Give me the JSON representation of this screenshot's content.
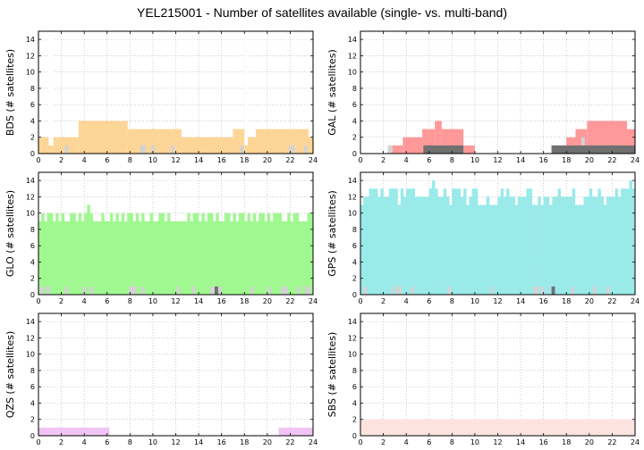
{
  "title": "YEL215001 - Number of satellites available (single- vs. multi-band)",
  "chart_data": [
    {
      "type": "bar",
      "system": "BDS",
      "ylabel": "BDS (# satellites)",
      "xlim": [
        0,
        24
      ],
      "ylim": [
        0,
        15
      ],
      "xticks": [
        0,
        2,
        4,
        6,
        8,
        10,
        12,
        14,
        16,
        18,
        20,
        22,
        24
      ],
      "yticks": [
        0,
        2,
        4,
        6,
        8,
        10,
        12,
        14
      ],
      "grid": true,
      "colors": {
        "single": "#fdd596",
        "multi": "#d3d3d3",
        "multi2": "#707070"
      },
      "single_band": [
        {
          "from": 0.0,
          "to": 1.3,
          "value": 2
        },
        {
          "from": 1.3,
          "to": 3.5,
          "value": 2
        },
        {
          "from": 3.5,
          "to": 7.8,
          "value": 4
        },
        {
          "from": 7.8,
          "to": 10.5,
          "value": 3
        },
        {
          "from": 10.5,
          "to": 12.5,
          "value": 3
        },
        {
          "from": 12.5,
          "to": 15.0,
          "value": 2
        },
        {
          "from": 15.0,
          "to": 17.0,
          "value": 2
        },
        {
          "from": 17.0,
          "to": 18.3,
          "value": 3
        },
        {
          "from": 18.3,
          "to": 19.0,
          "value": 2
        },
        {
          "from": 19.0,
          "to": 24.0,
          "value": 3
        }
      ],
      "single_band_dips": [
        {
          "from": 0.9,
          "to": 1.3,
          "value": 1
        },
        {
          "from": 18.0,
          "to": 18.3,
          "value": 1
        },
        {
          "from": 23.6,
          "to": 24.0,
          "value": 2
        }
      ],
      "multi_band": [
        {
          "from": 2.3,
          "to": 2.6,
          "value": 1
        },
        {
          "from": 8.9,
          "to": 9.4,
          "value": 1
        },
        {
          "from": 9.9,
          "to": 10.2,
          "value": 1
        },
        {
          "from": 11.6,
          "to": 11.9,
          "value": 1
        },
        {
          "from": 17.6,
          "to": 17.9,
          "value": 1
        },
        {
          "from": 21.9,
          "to": 22.4,
          "value": 1
        },
        {
          "from": 23.2,
          "to": 23.5,
          "value": 1
        }
      ],
      "multi_band_dark": []
    },
    {
      "type": "bar",
      "system": "GAL",
      "ylabel": "GAL (# satellites)",
      "xlim": [
        0,
        24
      ],
      "ylim": [
        0,
        15
      ],
      "xticks": [
        0,
        2,
        4,
        6,
        8,
        10,
        12,
        14,
        16,
        18,
        20,
        22,
        24
      ],
      "yticks": [
        0,
        2,
        4,
        6,
        8,
        10,
        12,
        14
      ],
      "grid": true,
      "colors": {
        "single": "#ff9999",
        "multi": "#d3d3d3",
        "multi2": "#707070"
      },
      "single_band": [
        {
          "from": 2.4,
          "to": 2.8,
          "value": 1
        },
        {
          "from": 2.8,
          "to": 3.7,
          "value": 1
        },
        {
          "from": 3.7,
          "to": 5.4,
          "value": 2
        },
        {
          "from": 5.4,
          "to": 6.5,
          "value": 3
        },
        {
          "from": 6.5,
          "to": 7.1,
          "value": 4
        },
        {
          "from": 7.1,
          "to": 9.0,
          "value": 3
        },
        {
          "from": 9.0,
          "to": 10.0,
          "value": 1
        },
        {
          "from": 16.7,
          "to": 18.0,
          "value": 1
        },
        {
          "from": 18.0,
          "to": 18.8,
          "value": 2
        },
        {
          "from": 18.8,
          "to": 19.8,
          "value": 3
        },
        {
          "from": 19.8,
          "to": 23.3,
          "value": 4
        },
        {
          "from": 23.3,
          "to": 24.0,
          "value": 3
        }
      ],
      "single_band_dips": [],
      "multi_band": [
        {
          "from": 2.4,
          "to": 2.8,
          "value": 1
        },
        {
          "from": 19.3,
          "to": 19.6,
          "value": 2
        }
      ],
      "multi_band_dark": [
        {
          "from": 5.5,
          "to": 9.0,
          "value": 1
        },
        {
          "from": 16.7,
          "to": 24.0,
          "value": 1
        }
      ]
    },
    {
      "type": "bar",
      "system": "GLO",
      "ylabel": "GLO (# satellites)",
      "xlim": [
        0,
        24
      ],
      "ylim": [
        0,
        15
      ],
      "xticks": [
        0,
        2,
        4,
        6,
        8,
        10,
        12,
        14,
        16,
        18,
        20,
        22,
        24
      ],
      "yticks": [
        0,
        2,
        4,
        6,
        8,
        10,
        12,
        14
      ],
      "grid": true,
      "colors": {
        "single": "#a0f890",
        "multi": "#d3d3d3",
        "multi2": "#707070"
      },
      "single_band_series": [
        9,
        10,
        9,
        10,
        10,
        9,
        10,
        9,
        10,
        9,
        9,
        10,
        10,
        9,
        10,
        9,
        10,
        11,
        10,
        9,
        9,
        9,
        10,
        9,
        9,
        10,
        9,
        10,
        9,
        10,
        9,
        10,
        10,
        9,
        10,
        9,
        10,
        9,
        9,
        10,
        9,
        9,
        10,
        10,
        9,
        10,
        9,
        9,
        9,
        9,
        9,
        9,
        10,
        9,
        10,
        10,
        9,
        10,
        9,
        10,
        10,
        9,
        10,
        9,
        9,
        10,
        10,
        9,
        10,
        9,
        10,
        10,
        9,
        10,
        9,
        10,
        9,
        10,
        10,
        9,
        10,
        9,
        10,
        10,
        10,
        9,
        9,
        10,
        9,
        10,
        10,
        9,
        9,
        9,
        10,
        10
      ],
      "single_band": [],
      "single_band_dips": [],
      "multi_band": [
        {
          "from": 0.1,
          "to": 0.5,
          "value": 1
        },
        {
          "from": 0.7,
          "to": 1.0,
          "value": 1
        },
        {
          "from": 2.3,
          "to": 2.6,
          "value": 1
        },
        {
          "from": 3.9,
          "to": 4.2,
          "value": 1
        },
        {
          "from": 4.5,
          "to": 4.8,
          "value": 1
        },
        {
          "from": 7.9,
          "to": 8.6,
          "value": 1
        },
        {
          "from": 9.0,
          "to": 9.3,
          "value": 1
        },
        {
          "from": 12.1,
          "to": 12.4,
          "value": 1
        },
        {
          "from": 13.4,
          "to": 13.7,
          "value": 1
        },
        {
          "from": 15.0,
          "to": 15.4,
          "value": 1
        },
        {
          "from": 15.7,
          "to": 16.0,
          "value": 1
        },
        {
          "from": 18.5,
          "to": 18.8,
          "value": 1
        },
        {
          "from": 20.0,
          "to": 20.3,
          "value": 1
        },
        {
          "from": 21.2,
          "to": 21.8,
          "value": 1
        },
        {
          "from": 22.6,
          "to": 22.9,
          "value": 1
        },
        {
          "from": 23.3,
          "to": 23.8,
          "value": 1
        }
      ],
      "multi_band_dark": [
        {
          "from": 15.4,
          "to": 15.7,
          "value": 1
        }
      ]
    },
    {
      "type": "bar",
      "system": "GPS",
      "ylabel": "GPS (# satellites)",
      "xlim": [
        0,
        24
      ],
      "ylim": [
        0,
        15
      ],
      "xticks": [
        0,
        2,
        4,
        6,
        8,
        10,
        12,
        14,
        16,
        18,
        20,
        22,
        24
      ],
      "yticks": [
        0,
        2,
        4,
        6,
        8,
        10,
        12,
        14
      ],
      "grid": true,
      "colors": {
        "single": "#9aeaea",
        "multi": "#d3d3d3",
        "multi2": "#707070"
      },
      "single_band_series": [
        11,
        12,
        12,
        13,
        13,
        13,
        12,
        13,
        12,
        12,
        13,
        13,
        13,
        11,
        13,
        12,
        13,
        13,
        13,
        12,
        12,
        12,
        12,
        12,
        13,
        14,
        13,
        12,
        12,
        13,
        12,
        11,
        13,
        13,
        13,
        12,
        13,
        11,
        12,
        13,
        13,
        11,
        11,
        11,
        12,
        11,
        11,
        11,
        12,
        13,
        12,
        13,
        12,
        12,
        11,
        12,
        12,
        12,
        13,
        13,
        11,
        11,
        12,
        11,
        12,
        12,
        11,
        12,
        12,
        13,
        12,
        12,
        12,
        12,
        13,
        11,
        11,
        11,
        12,
        12,
        13,
        12,
        12,
        13,
        12,
        11,
        12,
        12,
        12,
        13,
        12,
        13,
        13,
        13,
        14,
        13
      ],
      "single_band": [],
      "single_band_dips": [],
      "multi_band": [
        {
          "from": 0.3,
          "to": 0.6,
          "value": 1
        },
        {
          "from": 2.7,
          "to": 2.9,
          "value": 1
        },
        {
          "from": 3.1,
          "to": 3.6,
          "value": 1
        },
        {
          "from": 4.4,
          "to": 4.7,
          "value": 1
        },
        {
          "from": 7.6,
          "to": 7.9,
          "value": 1
        },
        {
          "from": 11.4,
          "to": 11.6,
          "value": 1
        },
        {
          "from": 15.1,
          "to": 15.6,
          "value": 1
        },
        {
          "from": 15.8,
          "to": 16.1,
          "value": 1
        },
        {
          "from": 18.4,
          "to": 18.7,
          "value": 1
        },
        {
          "from": 20.3,
          "to": 20.6,
          "value": 1
        },
        {
          "from": 21.5,
          "to": 21.8,
          "value": 1
        }
      ],
      "multi_band_dark": [
        {
          "from": 16.7,
          "to": 17.0,
          "value": 1
        }
      ]
    },
    {
      "type": "bar",
      "system": "QZS",
      "ylabel": "QZS (# satellites)",
      "xlim": [
        0,
        24
      ],
      "ylim": [
        0,
        15
      ],
      "xticks": [
        0,
        2,
        4,
        6,
        8,
        10,
        12,
        14,
        16,
        18,
        20,
        22,
        24
      ],
      "yticks": [
        0,
        2,
        4,
        6,
        8,
        10,
        12,
        14
      ],
      "grid": true,
      "colors": {
        "single": "#f0c4f4",
        "multi": "#d3d3d3",
        "multi2": "#707070"
      },
      "single_band": [
        {
          "from": 0.0,
          "to": 6.2,
          "value": 1
        },
        {
          "from": 21.0,
          "to": 24.0,
          "value": 1
        }
      ],
      "single_band_dips": [],
      "multi_band": [],
      "multi_band_dark": []
    },
    {
      "type": "bar",
      "system": "SBS",
      "ylabel": "SBS (# satellites)",
      "xlim": [
        0,
        24
      ],
      "ylim": [
        0,
        15
      ],
      "xticks": [
        0,
        2,
        4,
        6,
        8,
        10,
        12,
        14,
        16,
        18,
        20,
        22,
        24
      ],
      "yticks": [
        0,
        2,
        4,
        6,
        8,
        10,
        12,
        14
      ],
      "grid": true,
      "colors": {
        "single": "#fde3e0",
        "multi": "#d3d3d3",
        "multi2": "#707070"
      },
      "single_band": [
        {
          "from": 0.0,
          "to": 24.0,
          "value": 2
        }
      ],
      "single_band_dips": [],
      "multi_band": [],
      "multi_band_dark": []
    }
  ]
}
